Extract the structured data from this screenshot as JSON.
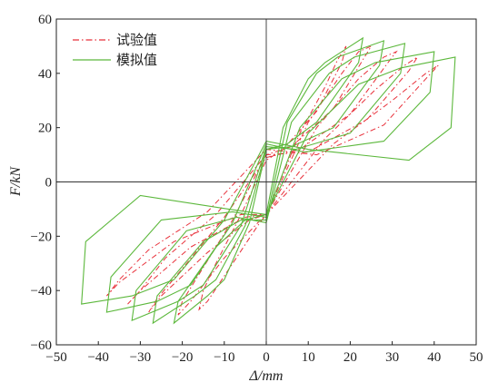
{
  "chart_data": {
    "type": "line",
    "title": "",
    "xlabel": "Δ/mm",
    "ylabel": "F/kN",
    "xlim": [
      -50,
      50
    ],
    "ylim": [
      -60,
      60
    ],
    "xticks": [
      -50,
      -40,
      -30,
      -20,
      -10,
      0,
      10,
      20,
      30,
      40,
      50
    ],
    "yticks": [
      -60,
      -40,
      -20,
      0,
      20,
      40,
      60
    ],
    "grid": false,
    "legend_position": "top-left",
    "series": [
      {
        "name": "试验值",
        "color": "#e8303a",
        "style": "dash-dot",
        "loops": [
          {
            "x": [
              0,
              8,
              14,
              17,
              19,
              18,
              12,
              4,
              0,
              -6,
              -12,
              -15,
              -16,
              -14,
              -8,
              -2,
              0
            ],
            "y": [
              -12,
              18,
              35,
              45,
              50,
              44,
              26,
              12,
              8,
              -12,
              -30,
              -40,
              -47,
              -44,
              -30,
              -16,
              -12
            ]
          },
          {
            "x": [
              0,
              10,
              18,
              22,
              25,
              23,
              16,
              6,
              0,
              -8,
              -16,
              -20,
              -21,
              -18,
              -10,
              -2,
              0
            ],
            "y": [
              -12,
              22,
              40,
              48,
              50,
              45,
              27,
              13,
              10,
              -14,
              -34,
              -44,
              -49,
              -44,
              -28,
              -15,
              -12
            ]
          },
          {
            "x": [
              0,
              12,
              22,
              28,
              31,
              29,
              20,
              8,
              0,
              -10,
              -20,
              -26,
              -28,
              -25,
              -14,
              -4,
              0
            ],
            "y": [
              -12,
              20,
              38,
              46,
              48,
              44,
              25,
              12,
              9,
              -13,
              -32,
              -43,
              -48,
              -42,
              -26,
              -14,
              -12
            ]
          },
          {
            "x": [
              0,
              14,
              26,
              33,
              36,
              34,
              24,
              10,
              0,
              -12,
              -24,
              -30,
              -33,
              -30,
              -18,
              -5,
              0
            ],
            "y": [
              -12,
              16,
              34,
              43,
              46,
              41,
              23,
              11,
              10,
              -12,
              -28,
              -40,
              -45,
              -40,
              -24,
              -13,
              -12
            ]
          },
          {
            "x": [
              0,
              16,
              30,
              38,
              41,
              38,
              28,
              12,
              0,
              -14,
              -28,
              -35,
              -38,
              -35,
              -22,
              -6,
              0
            ],
            "y": [
              -12,
              14,
              30,
              40,
              43,
              38,
              21,
              10,
              12,
              -11,
              -25,
              -36,
              -42,
              -37,
              -22,
              -12,
              -12
            ]
          }
        ]
      },
      {
        "name": "模拟值",
        "color": "#5cb83c",
        "style": "solid",
        "loops": [
          {
            "x": [
              0,
              4,
              10,
              14,
              23,
              22,
              12,
              5,
              0,
              -4,
              -10,
              -14,
              -22,
              -21,
              -12,
              -5,
              0
            ],
            "y": [
              -12,
              20,
              38,
              44,
              53,
              44,
              22,
              14,
              12,
              -15,
              -36,
              -42,
              -52,
              -44,
              -24,
              -14,
              -12
            ]
          },
          {
            "x": [
              0,
              5,
              12,
              17,
              28,
              27,
              16,
              6,
              0,
              -5,
              -12,
              -17,
              -27,
              -26,
              -15,
              -6,
              0
            ],
            "y": [
              -14,
              22,
              40,
              46,
              52,
              43,
              20,
              13,
              12,
              -16,
              -36,
              -42,
              -52,
              -42,
              -22,
              -14,
              -14
            ]
          },
          {
            "x": [
              0,
              6,
              15,
              21,
              33,
              32,
              20,
              7,
              0,
              -6,
              -15,
              -21,
              -32,
              -31,
              -19,
              -7,
              0
            ],
            "y": [
              -15,
              22,
              40,
              46,
              51,
              40,
              18,
              12,
              13,
              -16,
              -38,
              -44,
              -51,
              -40,
              -18,
              -13,
              -15
            ]
          },
          {
            "x": [
              0,
              8,
              18,
              26,
              40,
              39,
              28,
              9,
              0,
              -8,
              -18,
              -26,
              -38,
              -37,
              -25,
              -8,
              0
            ],
            "y": [
              -13,
              20,
              38,
              44,
              48,
              33,
              15,
              11,
              14,
              -15,
              -38,
              -44,
              -48,
              -35,
              -14,
              -11,
              -13
            ]
          },
          {
            "x": [
              0,
              10,
              22,
              32,
              45,
              44,
              34,
              10,
              0,
              -10,
              -22,
              -32,
              -44,
              -43,
              -30,
              -9,
              0
            ],
            "y": [
              -12,
              18,
              36,
              42,
              46,
              20,
              8,
              12,
              15,
              -14,
              -36,
              -42,
              -45,
              -22,
              -5,
              -10,
              -12
            ]
          }
        ]
      }
    ]
  }
}
